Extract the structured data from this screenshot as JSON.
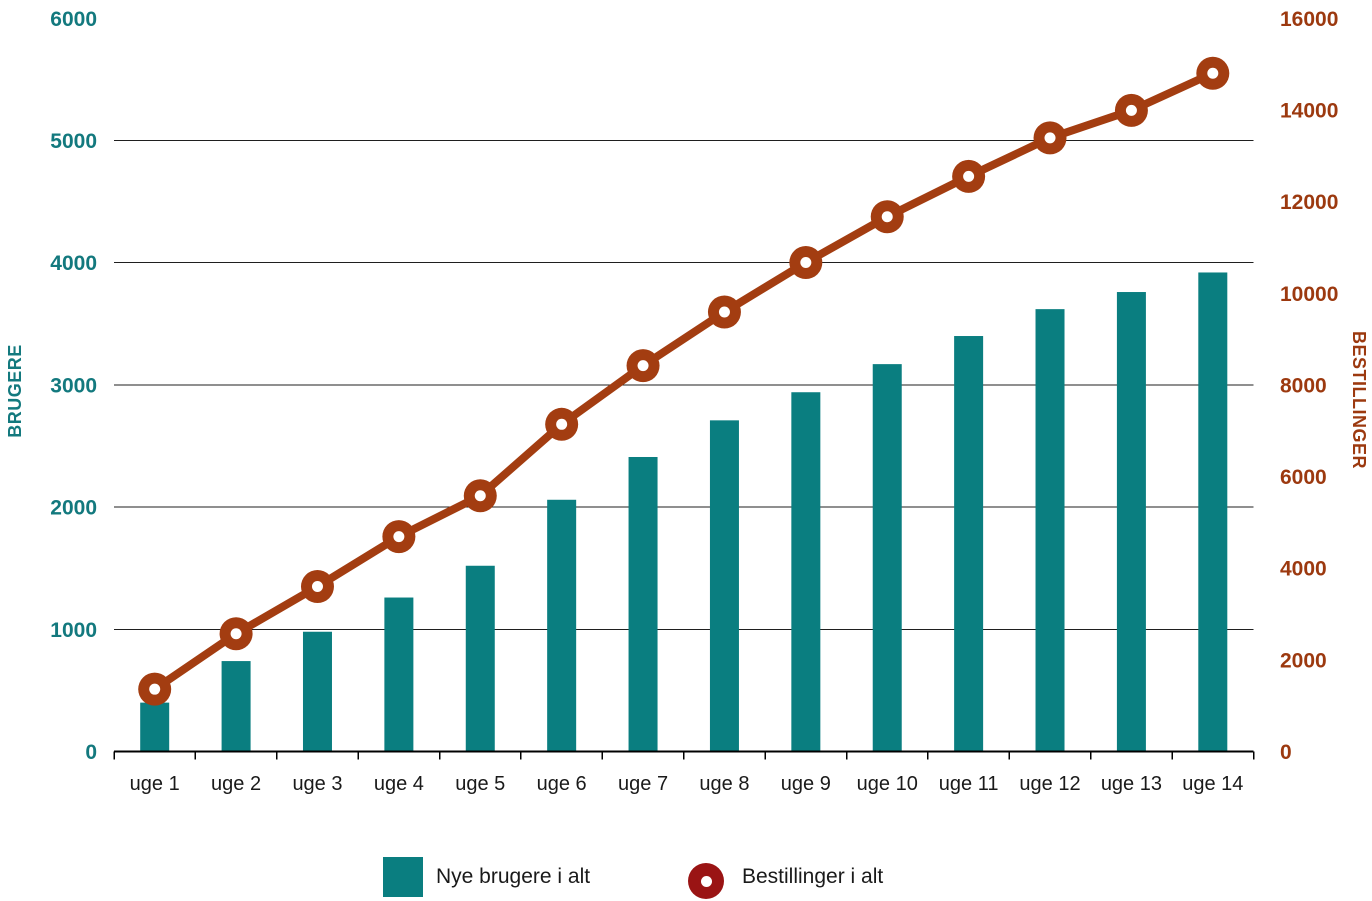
{
  "chart_data": {
    "type": "combo-bar-line",
    "title": "",
    "categories": [
      "uge 1",
      "uge 2",
      "uge 3",
      "uge 4",
      "uge 5",
      "uge 6",
      "uge 7",
      "uge 8",
      "uge 9",
      "uge 10",
      "uge 11",
      "uge 12",
      "uge 13",
      "uge 14"
    ],
    "series": [
      {
        "name": "Nye brugere i alt",
        "type": "bar",
        "axis": "left",
        "color": "#0A7E80",
        "values": [
          400,
          740,
          980,
          1260,
          1520,
          2060,
          2410,
          2710,
          2940,
          3170,
          3400,
          3620,
          3760,
          3920
        ]
      },
      {
        "name": "Bestillinger i alt",
        "type": "line",
        "axis": "right",
        "color": "#A33D11",
        "marker": "donut-circle",
        "values": [
          1360,
          2570,
          3600,
          4690,
          5580,
          7140,
          8420,
          9590,
          10670,
          11670,
          12550,
          13390,
          13990,
          14800
        ]
      }
    ],
    "left_axis": {
      "title": "BRUGERE",
      "min": 0,
      "max": 6000,
      "step": 1000,
      "ticks": [
        "0",
        "1000",
        "2000",
        "3000",
        "4000",
        "5000",
        "6000"
      ],
      "label_color": "#13797E"
    },
    "right_axis": {
      "title": "BESTILLINGER",
      "min": 0,
      "max": 16000,
      "step": 2000,
      "ticks": [
        "0",
        "2000",
        "4000",
        "6000",
        "8000",
        "10000",
        "12000",
        "14000",
        "16000"
      ],
      "label_color": "#9C390F"
    },
    "grid": {
      "horizontal": true,
      "vertical": false,
      "color": "#1f1f1f",
      "at_left_ticks": [
        1000,
        2000,
        3000,
        4000,
        5000
      ]
    },
    "legend_position": "bottom-center"
  },
  "legend": {
    "items": [
      {
        "label": "Nye brugere i alt",
        "swatch": "teal-square",
        "color": "#0A7E80"
      },
      {
        "label": "Bestillinger i alt",
        "swatch": "dark-red-donut",
        "color": "#9A1414"
      }
    ]
  },
  "colors": {
    "background": "#ffffff",
    "bar_teal": "#0A7E80",
    "line_rust": "#A33D11",
    "legend_donut_red": "#9A1414",
    "axis_line": "#000000",
    "gridline": "#1f1f1f",
    "category_text": "#1a1a1a"
  }
}
